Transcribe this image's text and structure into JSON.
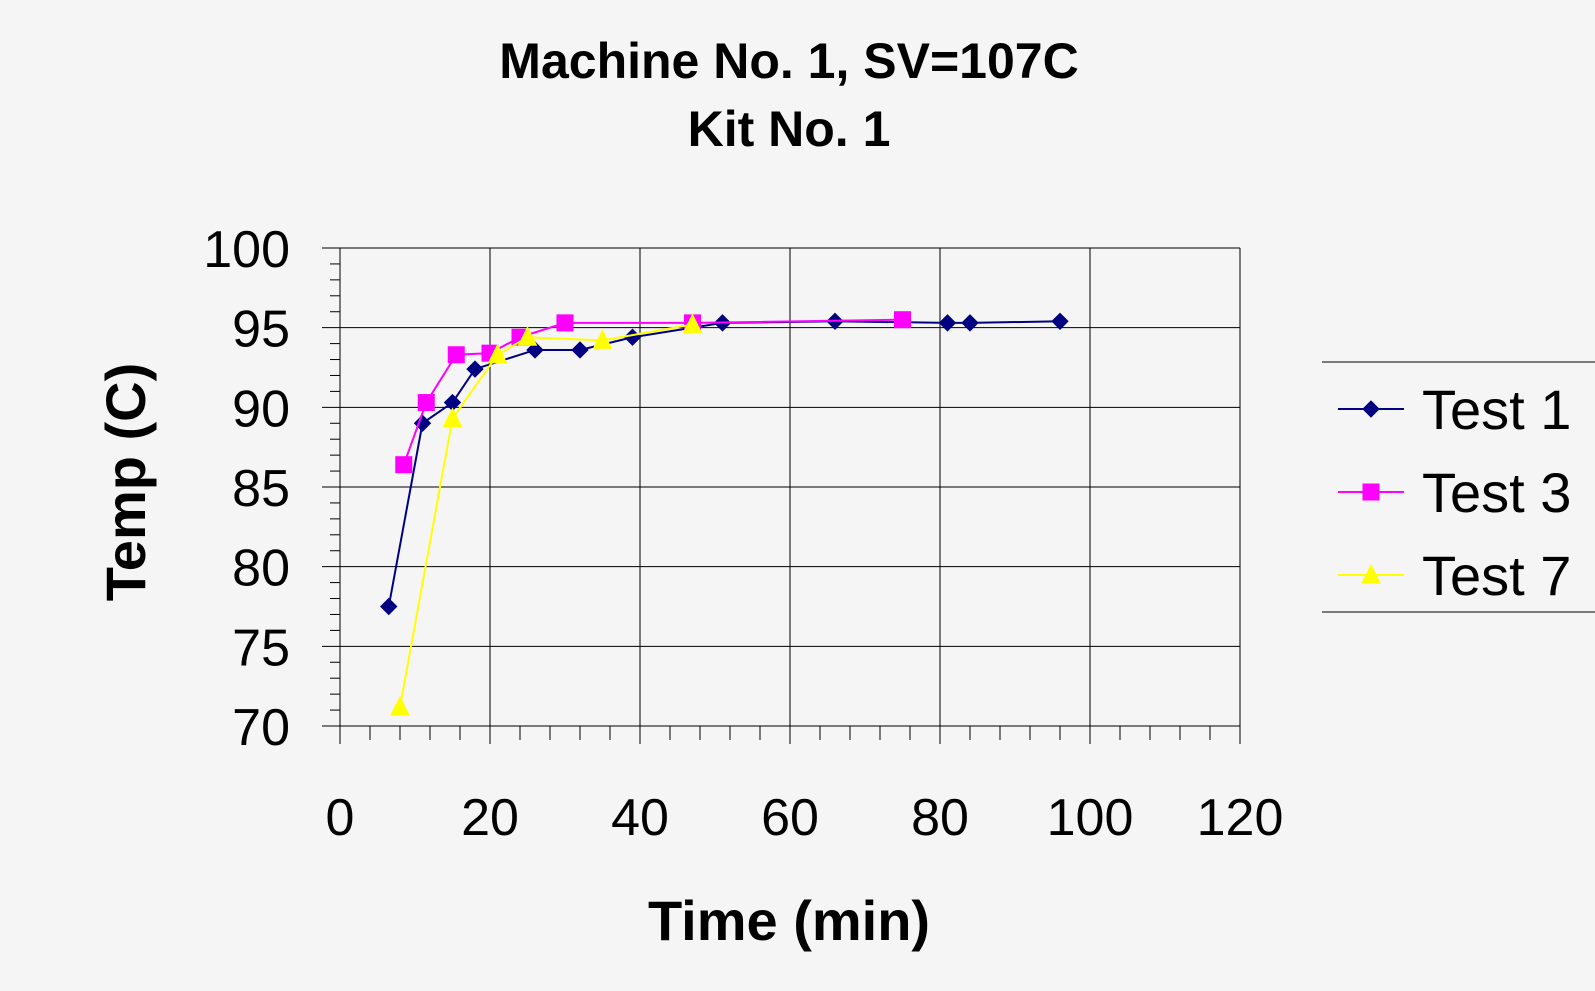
{
  "chart_data": {
    "type": "line",
    "title": "Machine No. 1, SV=107C",
    "subtitle": "Kit No. 1",
    "xlabel": "Time (min)",
    "ylabel": "Temp (C)",
    "xlim": [
      0,
      120
    ],
    "ylim": [
      70,
      100
    ],
    "x_ticks": [
      "0",
      "20",
      "40",
      "60",
      "80",
      "100",
      "120"
    ],
    "y_ticks": [
      "70",
      "75",
      "80",
      "85",
      "90",
      "95",
      "100"
    ],
    "grid": true,
    "legend_position": "right",
    "series": [
      {
        "name": "Test 1",
        "color": "#000080",
        "marker": "diamond",
        "points": [
          [
            6.5,
            77.5
          ],
          [
            11,
            89
          ],
          [
            15,
            90.3
          ],
          [
            18,
            92.4
          ],
          [
            26,
            93.6
          ],
          [
            32,
            93.6
          ],
          [
            39,
            94.4
          ],
          [
            51,
            95.3
          ],
          [
            66,
            95.4
          ],
          [
            81,
            95.3
          ],
          [
            84,
            95.3
          ],
          [
            96,
            95.4
          ]
        ]
      },
      {
        "name": "Test 3",
        "color": "#ff00ff",
        "marker": "square",
        "points": [
          [
            8.5,
            86.4
          ],
          [
            11.5,
            90.3
          ],
          [
            15.5,
            93.3
          ],
          [
            20,
            93.4
          ],
          [
            24,
            94.4
          ],
          [
            30,
            95.3
          ],
          [
            47,
            95.3
          ],
          [
            75,
            95.5
          ]
        ]
      },
      {
        "name": "Test 7",
        "color": "#ffff00",
        "marker": "triangle",
        "points": [
          [
            8,
            71.2
          ],
          [
            15,
            89.3
          ],
          [
            21,
            93.3
          ],
          [
            25,
            94.4
          ],
          [
            35,
            94.2
          ],
          [
            47,
            95.2
          ]
        ]
      }
    ]
  }
}
